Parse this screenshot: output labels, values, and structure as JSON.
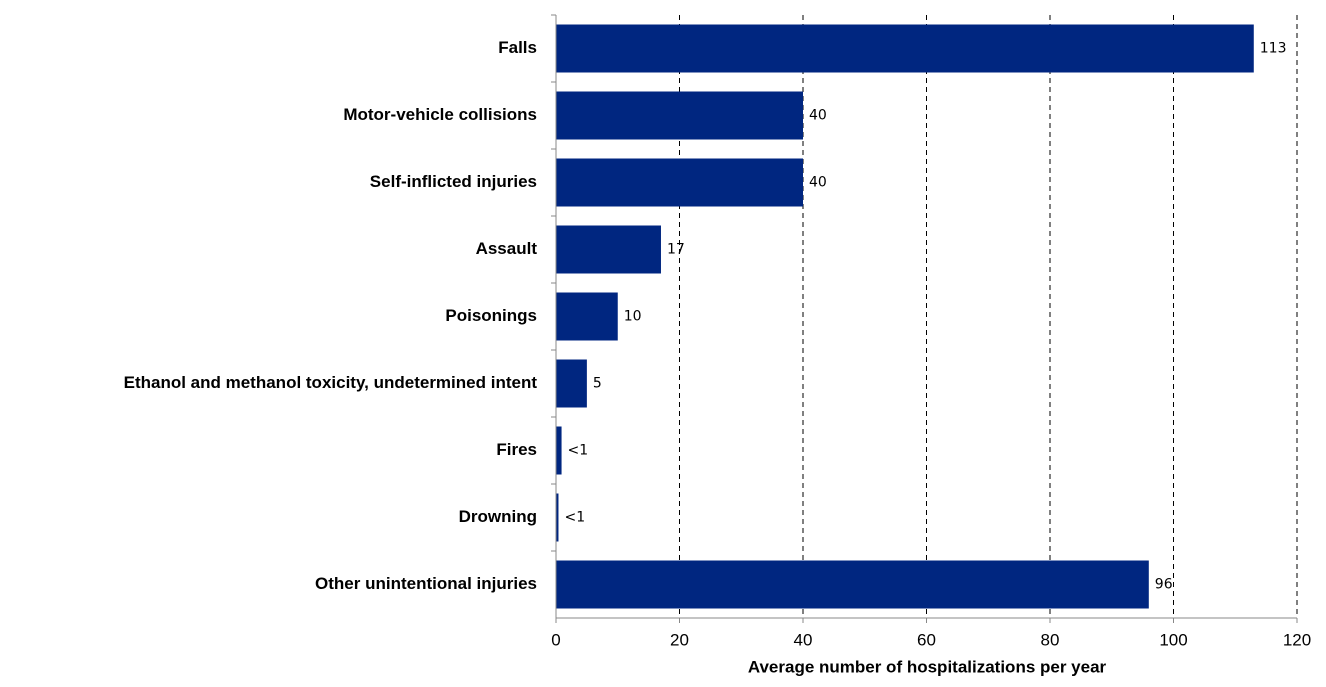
{
  "chart_data": {
    "type": "barh",
    "x_label": "Average number of hospitalizations per year",
    "categories": [
      "Falls",
      "Motor-vehicle collisions",
      "Self-inflicted injuries",
      "Assault",
      "Poisonings",
      "Ethanol and methanol toxicity, undetermined intent",
      "Fires",
      "Drowning",
      "Other unintentional injuries"
    ],
    "values": [
      113,
      40,
      40,
      17,
      10,
      5,
      0.9,
      0.4,
      96
    ],
    "value_labels": [
      "113",
      "40",
      "40",
      "17",
      "10",
      "5",
      "<1",
      "<1",
      "96"
    ],
    "color": "#002680",
    "xlim": [
      0,
      120
    ],
    "xticks": [
      0,
      20,
      40,
      60,
      80,
      100,
      120
    ],
    "grid": true
  }
}
